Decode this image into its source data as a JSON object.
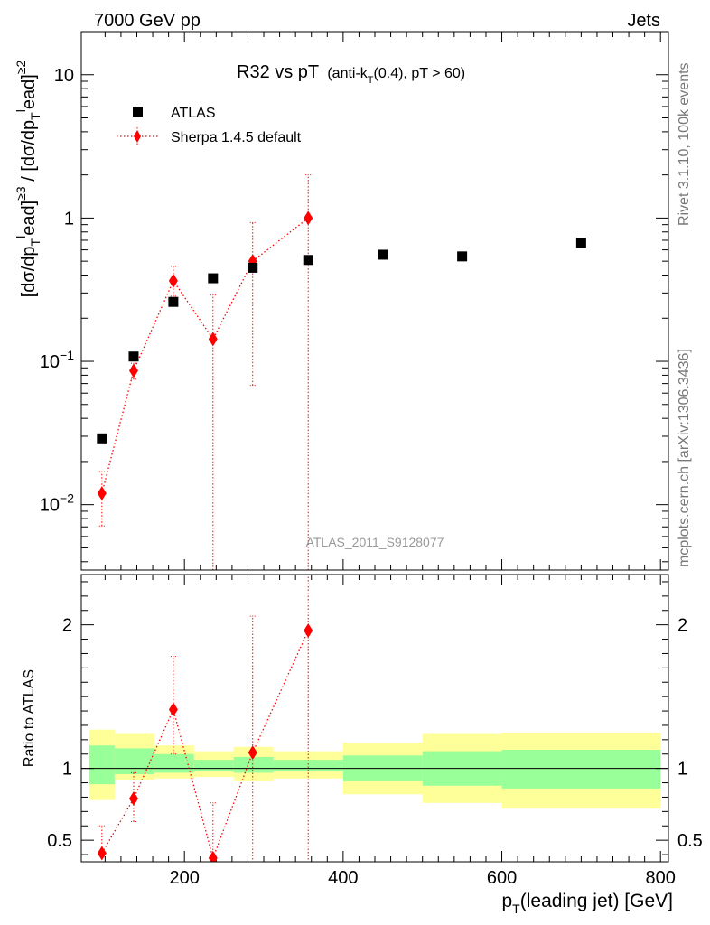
{
  "header": {
    "left": "7000 GeV pp",
    "right": "Jets"
  },
  "side_labels": {
    "rivet": "Rivet 3.1.10,  100k events",
    "mcplots": "mcplots.cern.ch [arXiv:1306.3436]"
  },
  "chart_data": [
    {
      "type": "scatter",
      "title_main": "R32 vs pT",
      "title_sub_prefix": "(anti-k",
      "title_sub_subscript": "T",
      "title_sub_suffix": "(0.4), pT > 60)",
      "analysis_label": "ATLAS_2011_S9128077",
      "ylabel": "[dσ/dp_T^lead]^≥3 / [dσ/dp_T^lead]^≥2",
      "yscale": "log",
      "ylim": [
        0.0035,
        20
      ],
      "xlim": [
        70,
        810
      ],
      "y_ticks": [
        {
          "value": 0.01,
          "base": "10",
          "exp": "−2"
        },
        {
          "value": 0.1,
          "base": "10",
          "exp": "−1"
        },
        {
          "value": 1,
          "base": "1",
          "exp": ""
        },
        {
          "value": 10,
          "base": "10",
          "exp": ""
        }
      ],
      "legend_position": "top-left",
      "series": [
        {
          "name": "ATLAS",
          "color": "#000000",
          "marker": "square",
          "points": [
            {
              "x": 96,
              "y": 0.029
            },
            {
              "x": 136,
              "y": 0.108
            },
            {
              "x": 186,
              "y": 0.26
            },
            {
              "x": 236,
              "y": 0.38
            },
            {
              "x": 286,
              "y": 0.45
            },
            {
              "x": 356,
              "y": 0.51
            },
            {
              "x": 450,
              "y": 0.555
            },
            {
              "x": 550,
              "y": 0.54
            },
            {
              "x": 700,
              "y": 0.67
            }
          ]
        },
        {
          "name": "Sherpa 1.4.5 default",
          "color": "#ff0000",
          "marker": "diamond",
          "line": "dotted",
          "points": [
            {
              "x": 96,
              "y": 0.012,
              "ylo": 0.0071,
              "yhi": 0.017
            },
            {
              "x": 136,
              "y": 0.086,
              "ylo": 0.075,
              "yhi": 0.097
            },
            {
              "x": 186,
              "y": 0.365,
              "ylo": 0.285,
              "yhi": 0.46
            },
            {
              "x": 236,
              "y": 0.143,
              "ylo": 0.003,
              "yhi": 0.29
            },
            {
              "x": 286,
              "y": 0.5,
              "ylo": 0.068,
              "yhi": 0.93
            },
            {
              "x": 356,
              "y": 1.0,
              "ylo": 0.003,
              "yhi": 2.0
            }
          ]
        }
      ]
    },
    {
      "type": "scatter",
      "ylabel": "Ratio to ATLAS",
      "xlabel_main": "p",
      "xlabel_sub": "T",
      "xlabel_rest": "(leading jet) [GeV]",
      "ylim": [
        0.35,
        2.35
      ],
      "xlim": [
        70,
        810
      ],
      "y_ticks": [
        0.5,
        1,
        2
      ],
      "x_ticks": [
        200,
        400,
        600,
        800
      ],
      "bands": [
        {
          "x0": 80,
          "x1": 112,
          "g_lo": 0.89,
          "g_hi": 1.16,
          "y_lo": 0.78,
          "y_hi": 1.27
        },
        {
          "x0": 112,
          "x1": 162,
          "g_lo": 0.96,
          "g_hi": 1.14,
          "y_lo": 0.92,
          "y_hi": 1.24
        },
        {
          "x0": 162,
          "x1": 212,
          "g_lo": 0.97,
          "g_hi": 1.1,
          "y_lo": 0.93,
          "y_hi": 1.16
        },
        {
          "x0": 212,
          "x1": 262,
          "g_lo": 0.98,
          "g_hi": 1.06,
          "y_lo": 0.94,
          "y_hi": 1.12
        },
        {
          "x0": 262,
          "x1": 312,
          "g_lo": 0.97,
          "g_hi": 1.08,
          "y_lo": 0.91,
          "y_hi": 1.15
        },
        {
          "x0": 312,
          "x1": 400,
          "g_lo": 0.98,
          "g_hi": 1.06,
          "y_lo": 0.93,
          "y_hi": 1.12
        },
        {
          "x0": 400,
          "x1": 500,
          "g_lo": 0.91,
          "g_hi": 1.09,
          "y_lo": 0.82,
          "y_hi": 1.18
        },
        {
          "x0": 500,
          "x1": 600,
          "g_lo": 0.88,
          "g_hi": 1.12,
          "y_lo": 0.76,
          "y_hi": 1.24
        },
        {
          "x0": 600,
          "x1": 800,
          "g_lo": 0.86,
          "g_hi": 1.13,
          "y_lo": 0.72,
          "y_hi": 1.25
        }
      ],
      "series": [
        {
          "name": "Sherpa 1.4.5 default",
          "color": "#ff0000",
          "marker": "diamond",
          "line": "dotted",
          "points": [
            {
              "x": 96,
              "y": 0.41,
              "ylo": 0.3,
              "yhi": 0.6
            },
            {
              "x": 136,
              "y": 0.79,
              "ylo": 0.63,
              "yhi": 0.97
            },
            {
              "x": 186,
              "y": 1.41,
              "ylo": 1.1,
              "yhi": 1.78
            },
            {
              "x": 236,
              "y": 0.376,
              "ylo": 0.3,
              "yhi": 0.76
            },
            {
              "x": 286,
              "y": 1.11,
              "ylo": 0.3,
              "yhi": 2.06
            },
            {
              "x": 356,
              "y": 1.96,
              "ylo": 0.3,
              "yhi": 2.6
            }
          ]
        }
      ]
    }
  ]
}
